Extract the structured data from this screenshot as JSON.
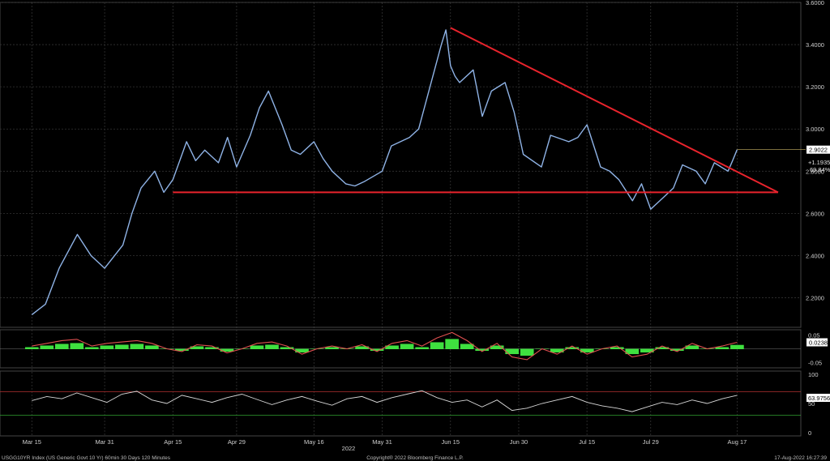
{
  "footer": {
    "security": "USGG10YR Index (US Generic Govt 10 Yr) 60min 30 Days 120 Minutes",
    "copyright": "Copyright® 2022 Bloomberg Finance L.P.",
    "timestamp": "17-Aug-2022 16:27:39"
  },
  "colors": {
    "background": "#000000",
    "price_line": "#8fb3e6",
    "trendline": "#e8232c",
    "macd_line": "#e05050",
    "histogram": "#3fe03f",
    "rsi_line": "#d8d8d8",
    "last_badge": "#ffffff"
  },
  "chart_data": [
    {
      "type": "line",
      "panel": "price",
      "ylim": [
        2.06,
        3.6
      ],
      "yticks": [
        "2.2000",
        "2.4000",
        "2.6000",
        "2.8000",
        "3.0000",
        "3.2000",
        "3.4000",
        "3.6000"
      ],
      "ytick_values": [
        2.2,
        2.4,
        2.6,
        2.8,
        3.0,
        3.2,
        3.4,
        3.6
      ],
      "xtick_labels": [
        "Mar 15",
        "Mar 31",
        "Apr 15",
        "Apr 29",
        "May 16",
        "May 31",
        "Jun 15",
        "Jun 30",
        "Jul 15",
        "Jul 29",
        "Aug 17"
      ],
      "xtick_dates": [
        "2022-03-15",
        "2022-03-31",
        "2022-04-15",
        "2022-04-29",
        "2022-05-16",
        "2022-05-31",
        "2022-06-15",
        "2022-06-30",
        "2022-07-15",
        "2022-07-29",
        "2022-08-17"
      ],
      "xlabel": "2022",
      "x": [
        "2022-03-15",
        "2022-03-18",
        "2022-03-21",
        "2022-03-25",
        "2022-03-28",
        "2022-03-31",
        "2022-04-04",
        "2022-04-06",
        "2022-04-08",
        "2022-04-11",
        "2022-04-13",
        "2022-04-15",
        "2022-04-18",
        "2022-04-20",
        "2022-04-22",
        "2022-04-25",
        "2022-04-27",
        "2022-04-29",
        "2022-05-02",
        "2022-05-04",
        "2022-05-06",
        "2022-05-09",
        "2022-05-11",
        "2022-05-13",
        "2022-05-16",
        "2022-05-18",
        "2022-05-20",
        "2022-05-23",
        "2022-05-25",
        "2022-05-27",
        "2022-05-31",
        "2022-06-02",
        "2022-06-06",
        "2022-06-08",
        "2022-06-10",
        "2022-06-13",
        "2022-06-14",
        "2022-06-15",
        "2022-06-16",
        "2022-06-17",
        "2022-06-20",
        "2022-06-22",
        "2022-06-24",
        "2022-06-27",
        "2022-06-29",
        "2022-07-01",
        "2022-07-05",
        "2022-07-07",
        "2022-07-11",
        "2022-07-13",
        "2022-07-15",
        "2022-07-18",
        "2022-07-20",
        "2022-07-22",
        "2022-07-25",
        "2022-07-27",
        "2022-07-29",
        "2022-08-01",
        "2022-08-03",
        "2022-08-05",
        "2022-08-08",
        "2022-08-10",
        "2022-08-12",
        "2022-08-15",
        "2022-08-16",
        "2022-08-17"
      ],
      "y": [
        2.12,
        2.17,
        2.34,
        2.5,
        2.4,
        2.34,
        2.45,
        2.6,
        2.72,
        2.8,
        2.7,
        2.76,
        2.94,
        2.85,
        2.9,
        2.84,
        2.96,
        2.82,
        2.97,
        3.1,
        3.18,
        3.02,
        2.9,
        2.88,
        2.94,
        2.86,
        2.8,
        2.74,
        2.73,
        2.75,
        2.8,
        2.92,
        2.96,
        3.0,
        3.16,
        3.4,
        3.47,
        3.3,
        3.25,
        3.22,
        3.28,
        3.06,
        3.18,
        3.22,
        3.08,
        2.88,
        2.82,
        2.97,
        2.94,
        2.96,
        3.02,
        2.82,
        2.8,
        2.76,
        2.66,
        2.74,
        2.62,
        2.68,
        2.72,
        2.83,
        2.8,
        2.74,
        2.84,
        2.8,
        2.85,
        2.9022
      ],
      "annotations": {
        "last_value": "2.9022",
        "net_change": "+1.1935",
        "pct_change": "69.84%",
        "support_level": 2.7,
        "resistance_from": {
          "x": "2022-06-15",
          "y": 3.48
        },
        "resistance_to": {
          "x": "2022-08-26",
          "y": 2.7
        }
      }
    },
    {
      "type": "line",
      "panel": "macd",
      "ylim": [
        -0.07,
        0.07
      ],
      "yticks": [
        "0.05",
        "-0.05"
      ],
      "ytick_values": [
        0.05,
        -0.05
      ],
      "last_value": "0.0238",
      "series": [
        {
          "name": "",
          "values": [
            0.01,
            0.02,
            0.03,
            0.035,
            0.01,
            0.02,
            0.025,
            0.03,
            0.02,
            0.0,
            -0.01,
            0.015,
            0.01,
            -0.015,
            0.0,
            0.02,
            0.025,
            0.01,
            -0.02,
            0.0,
            0.01,
            0.0,
            0.015,
            -0.01,
            0.02,
            0.03,
            0.01,
            0.04,
            0.06,
            0.03,
            -0.01,
            0.02,
            -0.03,
            -0.04,
            0.0,
            -0.02,
            0.01,
            -0.02,
            0.0,
            0.01,
            -0.03,
            -0.02,
            0.01,
            -0.01,
            0.02,
            0.0,
            0.01,
            0.0238
          ]
        }
      ]
    },
    {
      "type": "line",
      "panel": "rsi",
      "ylim": [
        0,
        100
      ],
      "yticks": [
        "100",
        "50",
        "0"
      ],
      "ytick_values": [
        100,
        50,
        0
      ],
      "levels": [
        70,
        30
      ],
      "last_value": "63.9756",
      "series": [
        {
          "name": "",
          "values": [
            55,
            62,
            58,
            68,
            60,
            52,
            66,
            71,
            56,
            50,
            64,
            58,
            52,
            60,
            66,
            57,
            48,
            56,
            62,
            54,
            47,
            58,
            62,
            52,
            60,
            66,
            72,
            60,
            52,
            56,
            44,
            56,
            38,
            42,
            50,
            56,
            62,
            52,
            46,
            42,
            36,
            44,
            52,
            48,
            56,
            50,
            58,
            63.9756
          ]
        }
      ]
    }
  ]
}
